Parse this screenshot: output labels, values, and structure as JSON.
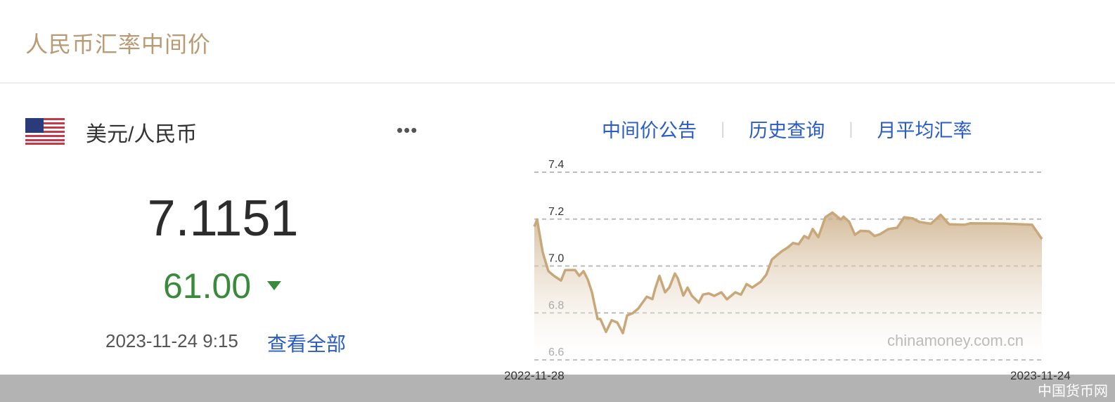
{
  "header": {
    "title": "人民币汇率中间价"
  },
  "currency": {
    "flag_icon": "us-flag-icon",
    "pair": "美元/人民币",
    "more_label": "•••",
    "rate": "7.1151",
    "change": "61.00",
    "change_direction": "down",
    "change_color": "#3a8a3c",
    "time": "2023-11-24 9:15",
    "view_all": "查看全部"
  },
  "links": [
    {
      "label": "中间价公告"
    },
    {
      "label": "历史查询"
    },
    {
      "label": "月平均汇率"
    }
  ],
  "separator": "|",
  "watermark": "中国货币网",
  "chart_data": {
    "type": "area",
    "title": "",
    "xlabel": "",
    "ylabel": "",
    "ylim": [
      6.6,
      7.4
    ],
    "yticks": [
      "7.4",
      "7.2",
      "7.0",
      "6.8",
      "6.6"
    ],
    "xtick_labels": [
      "2022-11-28",
      "2023-11-24"
    ],
    "grid": true,
    "line_color": "#c8a77a",
    "chart_watermark": "chinamoney.com.cn",
    "points": [
      [
        "2022-11-28",
        7.168
      ],
      [
        "2022-11-30",
        7.198
      ],
      [
        "2022-12-04",
        7.058
      ],
      [
        "2022-12-08",
        6.978
      ],
      [
        "2022-12-12",
        6.958
      ],
      [
        "2022-12-17",
        6.938
      ],
      [
        "2022-12-20",
        6.983
      ],
      [
        "2022-12-27",
        6.983
      ],
      [
        "2022-12-30",
        6.958
      ],
      [
        "2023-01-02",
        6.978
      ],
      [
        "2023-01-05",
        6.943
      ],
      [
        "2023-01-08",
        6.888
      ],
      [
        "2023-01-12",
        6.774
      ],
      [
        "2023-01-14",
        6.774
      ],
      [
        "2023-01-18",
        6.719
      ],
      [
        "2023-01-22",
        6.769
      ],
      [
        "2023-01-26",
        6.759
      ],
      [
        "2023-01-30",
        6.714
      ],
      [
        "2023-02-02",
        6.789
      ],
      [
        "2023-02-06",
        6.799
      ],
      [
        "2023-02-10",
        6.819
      ],
      [
        "2023-02-16",
        6.869
      ],
      [
        "2023-02-20",
        6.859
      ],
      [
        "2023-02-22",
        6.904
      ],
      [
        "2023-02-25",
        6.958
      ],
      [
        "2023-03-01",
        6.888
      ],
      [
        "2023-03-04",
        6.908
      ],
      [
        "2023-03-08",
        6.968
      ],
      [
        "2023-03-10",
        6.948
      ],
      [
        "2023-03-14",
        6.874
      ],
      [
        "2023-03-17",
        6.908
      ],
      [
        "2023-03-20",
        6.874
      ],
      [
        "2023-03-25",
        6.844
      ],
      [
        "2023-03-28",
        6.878
      ],
      [
        "2023-04-01",
        6.883
      ],
      [
        "2023-04-05",
        6.873
      ],
      [
        "2023-04-10",
        6.888
      ],
      [
        "2023-04-14",
        6.858
      ],
      [
        "2023-04-20",
        6.888
      ],
      [
        "2023-04-24",
        6.878
      ],
      [
        "2023-04-28",
        6.923
      ],
      [
        "2023-05-02",
        6.908
      ],
      [
        "2023-05-08",
        6.933
      ],
      [
        "2023-05-12",
        6.963
      ],
      [
        "2023-05-16",
        7.028
      ],
      [
        "2023-05-23",
        7.063
      ],
      [
        "2023-05-27",
        7.078
      ],
      [
        "2023-05-31",
        7.098
      ],
      [
        "2023-06-04",
        7.093
      ],
      [
        "2023-06-08",
        7.128
      ],
      [
        "2023-06-11",
        7.118
      ],
      [
        "2023-06-14",
        7.158
      ],
      [
        "2023-06-18",
        7.123
      ],
      [
        "2023-06-23",
        7.208
      ],
      [
        "2023-06-28",
        7.228
      ],
      [
        "2023-07-04",
        7.198
      ],
      [
        "2023-07-06",
        7.21
      ],
      [
        "2023-07-10",
        7.188
      ],
      [
        "2023-07-14",
        7.133
      ],
      [
        "2023-07-18",
        7.15
      ],
      [
        "2023-07-24",
        7.148
      ],
      [
        "2023-07-28",
        7.128
      ],
      [
        "2023-08-01",
        7.136
      ],
      [
        "2023-08-07",
        7.158
      ],
      [
        "2023-08-13",
        7.163
      ],
      [
        "2023-08-18",
        7.208
      ],
      [
        "2023-08-24",
        7.203
      ],
      [
        "2023-08-29",
        7.188
      ],
      [
        "2023-09-06",
        7.18
      ],
      [
        "2023-09-13",
        7.218
      ],
      [
        "2023-09-19",
        7.178
      ],
      [
        "2023-09-30",
        7.176
      ],
      [
        "2023-10-04",
        7.182
      ],
      [
        "2023-10-27",
        7.181
      ],
      [
        "2023-11-17",
        7.176
      ],
      [
        "2023-11-24",
        7.1151
      ]
    ]
  }
}
